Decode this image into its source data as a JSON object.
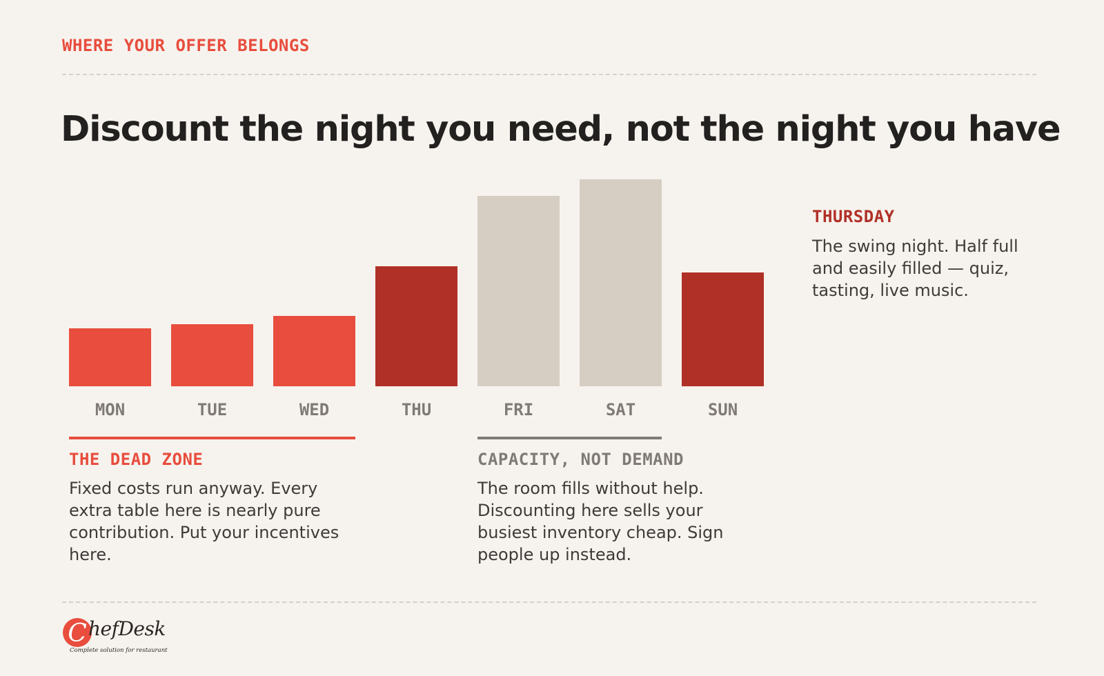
{
  "eyebrow": "WHERE YOUR OFFER BELONGS",
  "headline": "Discount the night you need, not the night you have",
  "colors": {
    "dead_zone": "#e84d3d",
    "swing": "#b03027",
    "capacity": "#d6cdc3",
    "day_label": "#807a75",
    "thursday_title": "#b03027",
    "capacity_title": "#7f7a75",
    "capacity_line": "#807a75"
  },
  "chart_data": {
    "type": "bar",
    "categories": [
      "MON",
      "TUE",
      "WED",
      "THU",
      "FRI",
      "SAT",
      "SUN"
    ],
    "values": [
      28,
      30,
      34,
      58,
      92,
      100,
      55
    ],
    "ylim": [
      0,
      100
    ],
    "bar_groups": [
      "dead_zone",
      "dead_zone",
      "dead_zone",
      "swing",
      "capacity",
      "capacity",
      "swing"
    ]
  },
  "groups": {
    "dead_zone": {
      "title": "THE DEAD ZONE",
      "text": "Fixed costs run anyway. Every extra table here is nearly pure contribution. Put your incentives here."
    },
    "capacity": {
      "title": "CAPACITY, NOT DEMAND",
      "text": "The room fills without help. Discounting here sells your busiest inventory cheap. Sign people up instead."
    },
    "thursday": {
      "title": "THURSDAY",
      "text": "The swing night. Half full and easily filled — quiz, tasting, live music."
    }
  },
  "logo": {
    "initial": "C",
    "word": "hefDesk",
    "tagline": "Complete solution for restaurant"
  }
}
